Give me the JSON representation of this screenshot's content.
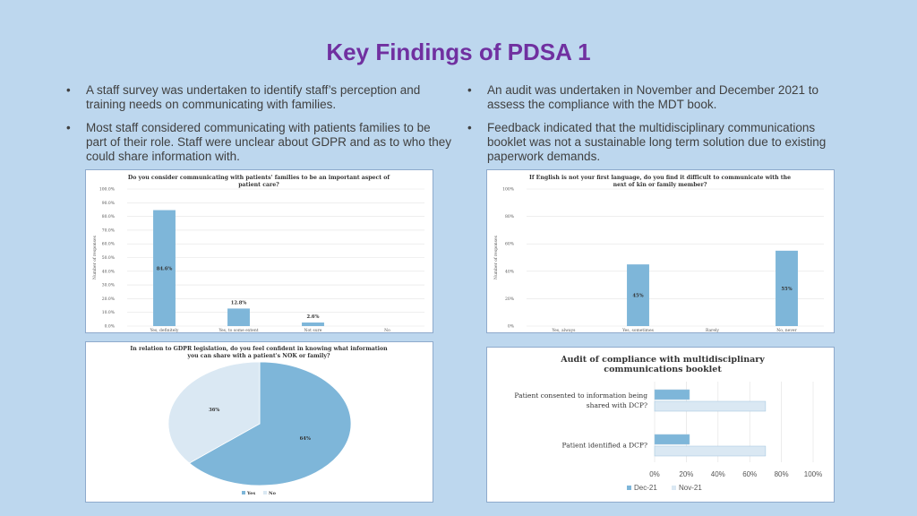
{
  "title": "Key Findings of PDSA 1",
  "bullets_left": [
    "A staff survey was undertaken to identify staff’s perception and training needs on communicating with families.",
    "Most staff considered communicating with patients families to be part of their role.  Staff were unclear about GDPR and as to who they could share information with."
  ],
  "bullets_right": [
    "An audit was undertaken in November and December 2021 to assess the compliance with the MDT book.",
    "Feedback indicated that the multidisciplinary communications booklet was not a sustainable long term solution due to existing paperwork demands."
  ],
  "colors": {
    "bar": "#7eb6d9",
    "pie_no": "#dae8f3",
    "nov": "#dae8f3",
    "title": "#7030a0"
  },
  "chart_data": [
    {
      "type": "bar",
      "title_lines": [
        "Do you consider communicating with patients' families to be an important aspect of",
        "patient care?"
      ],
      "ylabel": "Number of responses",
      "yticks": [
        "0.0%",
        "10.0%",
        "20.0%",
        "30.0%",
        "40.0%",
        "50.0%",
        "60.0%",
        "70.0%",
        "80.0%",
        "90.0%",
        "100.0%"
      ],
      "ylim": [
        0,
        100
      ],
      "categories": [
        "Yes, definitely",
        "Yes, to some extent",
        "Not sure",
        "No"
      ],
      "values": [
        84.6,
        12.8,
        2.6,
        0
      ],
      "data_labels": [
        "84.6%",
        "12.8%",
        "2.6%",
        ""
      ]
    },
    {
      "type": "bar",
      "title_lines": [
        "If English is not your first language, do you find it difficult to communicate with the",
        "next of kin or family member?"
      ],
      "ylabel": "Number of responses",
      "yticks": [
        "0%",
        "20%",
        "40%",
        "60%",
        "80%",
        "100%"
      ],
      "ylim": [
        0,
        100
      ],
      "categories": [
        "Yes, always",
        "Yes, sometimes",
        "Rarely",
        "No, never"
      ],
      "values": [
        0,
        45,
        0,
        55
      ],
      "data_labels": [
        "",
        "45%",
        "",
        "55%"
      ]
    },
    {
      "type": "pie",
      "title_lines": [
        "In relation to GDPR legislation, do you feel confident in knowing what information",
        "you can share with a patient's NOK or family?"
      ],
      "categories": [
        "Yes",
        "No"
      ],
      "values": [
        64,
        36
      ],
      "data_labels": [
        "64%",
        "36%"
      ],
      "legend": "bottom"
    },
    {
      "type": "bar",
      "orientation": "horizontal",
      "title_lines": [
        "Audit of compliance with multidisciplinary",
        "communications booklet"
      ],
      "categories": [
        [
          "Patient consented to information being",
          "shared with DCP?"
        ],
        [
          "Patient identified a DCP?"
        ]
      ],
      "series": [
        {
          "name": "Dec-21",
          "values": [
            22,
            22
          ]
        },
        {
          "name": "Nov-21",
          "values": [
            70,
            70
          ]
        }
      ],
      "xticks": [
        "0%",
        "20%",
        "40%",
        "60%",
        "80%",
        "100%"
      ],
      "xlim": [
        0,
        100
      ],
      "legend": "bottom"
    }
  ]
}
